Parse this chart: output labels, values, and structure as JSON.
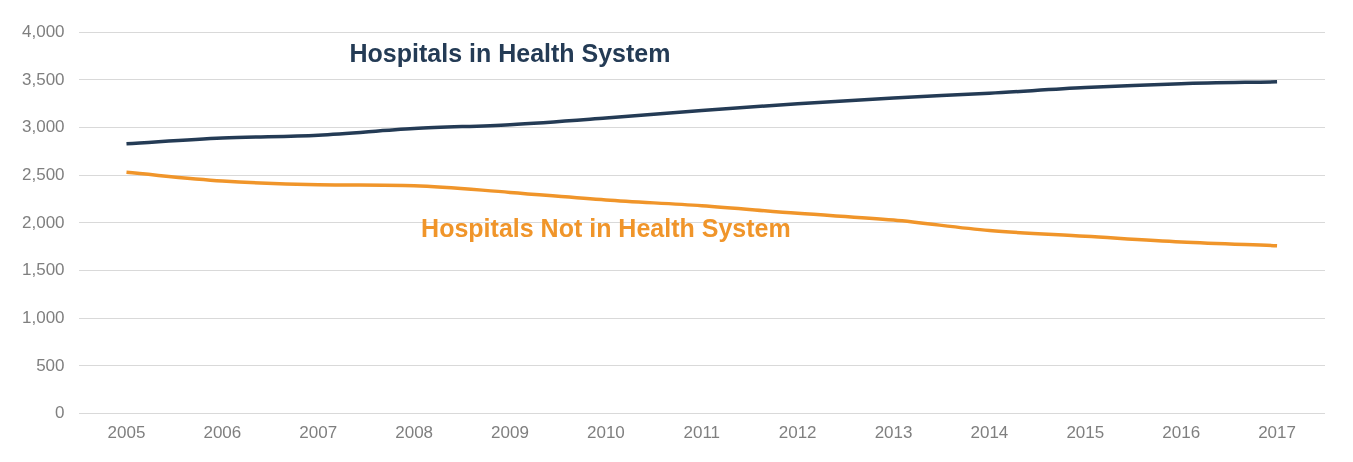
{
  "chart_data": {
    "type": "line",
    "categories": [
      "2005",
      "2006",
      "2007",
      "2008",
      "2009",
      "2010",
      "2011",
      "2012",
      "2013",
      "2014",
      "2015",
      "2016",
      "2017"
    ],
    "series": [
      {
        "name": "Hospitals in Health System",
        "color": "#243b55",
        "values": [
          2830,
          2890,
          2920,
          2990,
          3030,
          3100,
          3180,
          3250,
          3310,
          3360,
          3420,
          3460,
          3480
        ]
      },
      {
        "name": "Hospitals Not in Health System",
        "color": "#f0952a",
        "values": [
          2530,
          2440,
          2400,
          2390,
          2320,
          2240,
          2180,
          2100,
          2030,
          1920,
          1860,
          1800,
          1760
        ]
      }
    ],
    "ylim": [
      0,
      4000
    ],
    "yticks": [
      0,
      500,
      {
        "value": 1000,
        "label": "1,000"
      },
      {
        "value": 1500,
        "label": "1,500"
      },
      {
        "value": 2000,
        "label": "2,000"
      },
      {
        "value": 2500,
        "label": "2,500"
      },
      {
        "value": 3000,
        "label": "3,000"
      },
      {
        "value": 3500,
        "label": "3,500"
      },
      {
        "value": 4000,
        "label": "4,000"
      }
    ],
    "grid": "y",
    "legend": false,
    "marker": "none",
    "line_style": "solid"
  }
}
